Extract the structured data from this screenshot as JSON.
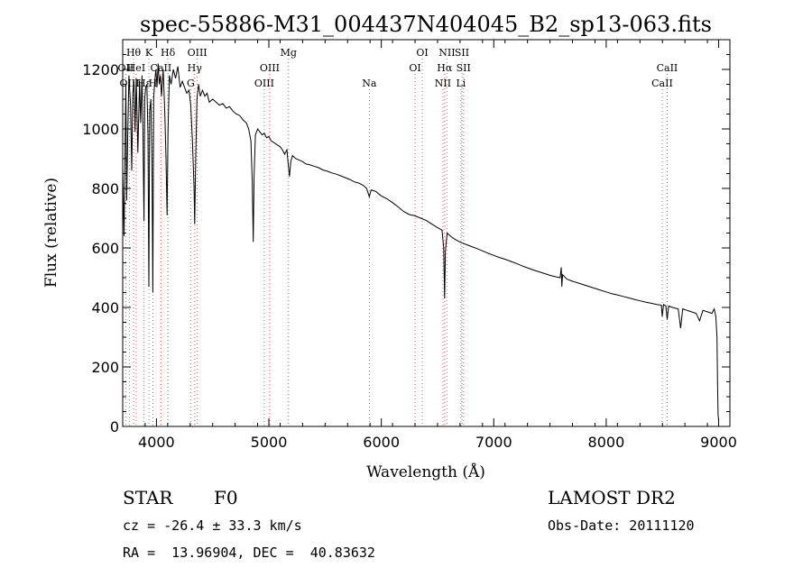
{
  "chart_data": {
    "type": "line",
    "title": "spec-55886-M31_004437N404045_B2_sp13-063.fits",
    "xlabel": "Wavelength (Å)",
    "ylabel": "Flux (relative)",
    "xlim": [
      3700,
      9100
    ],
    "ylim": [
      0,
      1300
    ],
    "x_ticks": [
      4000,
      5000,
      6000,
      7000,
      8000,
      9000
    ],
    "y_ticks": [
      0,
      200,
      400,
      600,
      800,
      1000,
      1200
    ],
    "grid": false,
    "series": [
      {
        "name": "spectrum",
        "points": [
          [
            3700,
            870
          ],
          [
            3712,
            640
          ],
          [
            3720,
            900
          ],
          [
            3728,
            1150
          ],
          [
            3735,
            760
          ],
          [
            3745,
            980
          ],
          [
            3755,
            1180
          ],
          [
            3770,
            1080
          ],
          [
            3780,
            860
          ],
          [
            3790,
            1120
          ],
          [
            3800,
            1160
          ],
          [
            3810,
            990
          ],
          [
            3820,
            1170
          ],
          [
            3835,
            920
          ],
          [
            3850,
            1160
          ],
          [
            3860,
            1020
          ],
          [
            3872,
            1180
          ],
          [
            3880,
            1000
          ],
          [
            3889,
            690
          ],
          [
            3896,
            1100
          ],
          [
            3905,
            1140
          ],
          [
            3915,
            1150
          ],
          [
            3925,
            980
          ],
          [
            3933,
            470
          ],
          [
            3940,
            1060
          ],
          [
            3950,
            1100
          ],
          [
            3960,
            900
          ],
          [
            3968,
            450
          ],
          [
            3975,
            1100
          ],
          [
            3985,
            1160
          ],
          [
            3995,
            1200
          ],
          [
            4005,
            1140
          ],
          [
            4015,
            1220
          ],
          [
            4025,
            1150
          ],
          [
            4035,
            1180
          ],
          [
            4045,
            1110
          ],
          [
            4060,
            1200
          ],
          [
            4075,
            1050
          ],
          [
            4085,
            900
          ],
          [
            4095,
            710
          ],
          [
            4103,
            990
          ],
          [
            4115,
            1180
          ],
          [
            4130,
            1150
          ],
          [
            4150,
            1200
          ],
          [
            4170,
            1170
          ],
          [
            4190,
            1210
          ],
          [
            4210,
            1140
          ],
          [
            4230,
            1160
          ],
          [
            4250,
            1140
          ],
          [
            4270,
            1120
          ],
          [
            4290,
            1130
          ],
          [
            4305,
            1080
          ],
          [
            4320,
            960
          ],
          [
            4335,
            800
          ],
          [
            4340,
            680
          ],
          [
            4348,
            880
          ],
          [
            4360,
            1100
          ],
          [
            4375,
            1150
          ],
          [
            4390,
            1110
          ],
          [
            4410,
            1130
          ],
          [
            4430,
            1110
          ],
          [
            4450,
            1120
          ],
          [
            4470,
            1090
          ],
          [
            4500,
            1100
          ],
          [
            4530,
            1090
          ],
          [
            4560,
            1080
          ],
          [
            4590,
            1085
          ],
          [
            4620,
            1070
          ],
          [
            4650,
            1075
          ],
          [
            4680,
            1060
          ],
          [
            4710,
            1050
          ],
          [
            4740,
            1045
          ],
          [
            4770,
            1030
          ],
          [
            4800,
            1020
          ],
          [
            4820,
            1000
          ],
          [
            4840,
            960
          ],
          [
            4852,
            820
          ],
          [
            4861,
            620
          ],
          [
            4868,
            840
          ],
          [
            4880,
            980
          ],
          [
            4900,
            1000
          ],
          [
            4920,
            990
          ],
          [
            4940,
            980
          ],
          [
            4960,
            985
          ],
          [
            4980,
            970
          ],
          [
            5000,
            975
          ],
          [
            5020,
            960
          ],
          [
            5040,
            955
          ],
          [
            5060,
            950
          ],
          [
            5080,
            945
          ],
          [
            5100,
            940
          ],
          [
            5120,
            930
          ],
          [
            5140,
            915
          ],
          [
            5160,
            930
          ],
          [
            5172,
            880
          ],
          [
            5183,
            840
          ],
          [
            5195,
            890
          ],
          [
            5210,
            910
          ],
          [
            5240,
            900
          ],
          [
            5270,
            895
          ],
          [
            5300,
            890
          ],
          [
            5330,
            882
          ],
          [
            5360,
            880
          ],
          [
            5400,
            875
          ],
          [
            5440,
            870
          ],
          [
            5480,
            862
          ],
          [
            5520,
            858
          ],
          [
            5560,
            852
          ],
          [
            5600,
            848
          ],
          [
            5640,
            842
          ],
          [
            5680,
            836
          ],
          [
            5720,
            830
          ],
          [
            5760,
            822
          ],
          [
            5800,
            818
          ],
          [
            5840,
            810
          ],
          [
            5870,
            800
          ],
          [
            5893,
            772
          ],
          [
            5910,
            795
          ],
          [
            5950,
            790
          ],
          [
            6000,
            775
          ],
          [
            6050,
            765
          ],
          [
            6100,
            752
          ],
          [
            6150,
            738
          ],
          [
            6200,
            722
          ],
          [
            6250,
            712
          ],
          [
            6300,
            708
          ],
          [
            6350,
            700
          ],
          [
            6400,
            692
          ],
          [
            6450,
            680
          ],
          [
            6500,
            668
          ],
          [
            6540,
            660
          ],
          [
            6555,
            600
          ],
          [
            6563,
            430
          ],
          [
            6570,
            590
          ],
          [
            6585,
            650
          ],
          [
            6620,
            638
          ],
          [
            6660,
            628
          ],
          [
            6700,
            620
          ],
          [
            6750,
            612
          ],
          [
            6800,
            605
          ],
          [
            6850,
            598
          ],
          [
            6900,
            590
          ],
          [
            6950,
            582
          ],
          [
            7000,
            575
          ],
          [
            7050,
            568
          ],
          [
            7100,
            562
          ],
          [
            7150,
            555
          ],
          [
            7200,
            548
          ],
          [
            7250,
            540
          ],
          [
            7300,
            533
          ],
          [
            7350,
            526
          ],
          [
            7400,
            520
          ],
          [
            7450,
            514
          ],
          [
            7500,
            508
          ],
          [
            7550,
            503
          ],
          [
            7590,
            500
          ],
          [
            7600,
            535
          ],
          [
            7605,
            470
          ],
          [
            7612,
            510
          ],
          [
            7650,
            495
          ],
          [
            7700,
            488
          ],
          [
            7750,
            482
          ],
          [
            7800,
            476
          ],
          [
            7850,
            470
          ],
          [
            7900,
            464
          ],
          [
            7950,
            458
          ],
          [
            8000,
            452
          ],
          [
            8050,
            446
          ],
          [
            8100,
            442
          ],
          [
            8150,
            437
          ],
          [
            8200,
            432
          ],
          [
            8250,
            427
          ],
          [
            8300,
            422
          ],
          [
            8350,
            418
          ],
          [
            8400,
            414
          ],
          [
            8450,
            410
          ],
          [
            8490,
            408
          ],
          [
            8498,
            370
          ],
          [
            8510,
            410
          ],
          [
            8530,
            405
          ],
          [
            8542,
            360
          ],
          [
            8555,
            405
          ],
          [
            8590,
            400
          ],
          [
            8640,
            395
          ],
          [
            8662,
            330
          ],
          [
            8680,
            395
          ],
          [
            8720,
            390
          ],
          [
            8760,
            385
          ],
          [
            8800,
            380
          ],
          [
            8830,
            355
          ],
          [
            8860,
            390
          ],
          [
            8900,
            385
          ],
          [
            8940,
            380
          ],
          [
            8960,
            395
          ],
          [
            8975,
            370
          ],
          [
            8985,
            300
          ],
          [
            8990,
            150
          ],
          [
            8995,
            40
          ],
          [
            9000,
            20
          ]
        ]
      }
    ],
    "line_markers": [
      {
        "label": "Hθ",
        "x": 3797,
        "row": 1
      },
      {
        "label": "OII",
        "x": 3727,
        "row": 2
      },
      {
        "label": "HeI",
        "x": 3820,
        "row": 2
      },
      {
        "label": "OIII",
        "x": 3760,
        "row": 3
      },
      {
        "label": "Hε",
        "x": 3890,
        "row": 3
      },
      {
        "label": "H",
        "x": 3968,
        "row": 3
      },
      {
        "label": "K",
        "x": 3933,
        "row": 1
      },
      {
        "label": "Hδ",
        "x": 4102,
        "row": 1
      },
      {
        "label": "CaII",
        "x": 4040,
        "row": 2
      },
      {
        "label": "OIII",
        "x": 4363,
        "row": 1
      },
      {
        "label": "Hγ",
        "x": 4340,
        "row": 2
      },
      {
        "label": "G",
        "x": 4305,
        "row": 3
      },
      {
        "label": "OIII",
        "x": 5007,
        "row": 2
      },
      {
        "label": "OIII",
        "x": 4959,
        "row": 3
      },
      {
        "label": "Mg",
        "x": 5175,
        "row": 1
      },
      {
        "label": "Na",
        "x": 5893,
        "row": 3
      },
      {
        "label": "OI",
        "x": 6364,
        "row": 1
      },
      {
        "label": "OI",
        "x": 6300,
        "row": 2
      },
      {
        "label": "NII",
        "x": 6584,
        "row": 1
      },
      {
        "label": "SII",
        "x": 6717,
        "row": 1
      },
      {
        "label": "Hα",
        "x": 6563,
        "row": 2
      },
      {
        "label": "SII",
        "x": 6731,
        "row": 2
      },
      {
        "label": "NII",
        "x": 6548,
        "row": 3
      },
      {
        "label": "Li",
        "x": 6708,
        "row": 3
      },
      {
        "label": "CaII",
        "x": 8542,
        "row": 2
      },
      {
        "label": "CaII",
        "x": 8498,
        "row": 3
      }
    ]
  },
  "info": {
    "class_label": "STAR",
    "subclass_label": "F0",
    "survey": "LAMOST DR2",
    "redshift": "cz = -26.4 ± 33.3 km/s",
    "obs_date": "Obs-Date: 20111120",
    "coords": "RA =  13.96904, DEC =  40.83632"
  },
  "colors": {
    "line": "#000000",
    "marker": "#ff5555",
    "background": "#ffffff"
  }
}
